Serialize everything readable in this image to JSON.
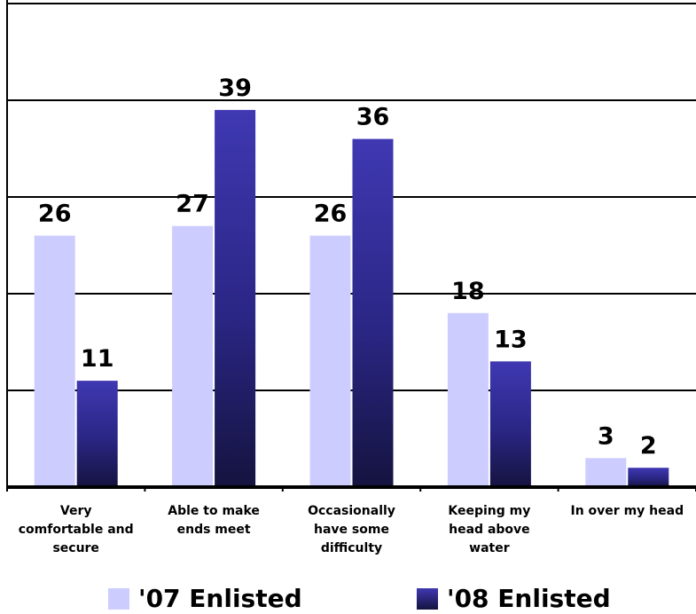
{
  "chart_data": {
    "type": "bar",
    "categories": [
      [
        "Very",
        "comfortable and",
        "secure"
      ],
      [
        "Able to make",
        "ends meet"
      ],
      [
        "Occasionally",
        "have some",
        "difficulty"
      ],
      [
        "Keeping my",
        "head above",
        "water"
      ],
      [
        "In over my head"
      ]
    ],
    "series": [
      {
        "name": "'07 Enlisted",
        "values": [
          26,
          27,
          26,
          18,
          3
        ],
        "color": "#ccccff"
      },
      {
        "name": "'08 Enlisted",
        "values": [
          11,
          39,
          36,
          13,
          2
        ],
        "color": "#2e2a8c"
      }
    ],
    "ylim": [
      0,
      50
    ],
    "gridlines": [
      10,
      20,
      30,
      40,
      50
    ],
    "grid": true,
    "legend_position": "bottom"
  },
  "legend": {
    "items": [
      {
        "label": "'07 Enlisted",
        "color": "#ccccff"
      },
      {
        "label": "'08 Enlisted",
        "color": "#2e2a8c"
      }
    ]
  }
}
